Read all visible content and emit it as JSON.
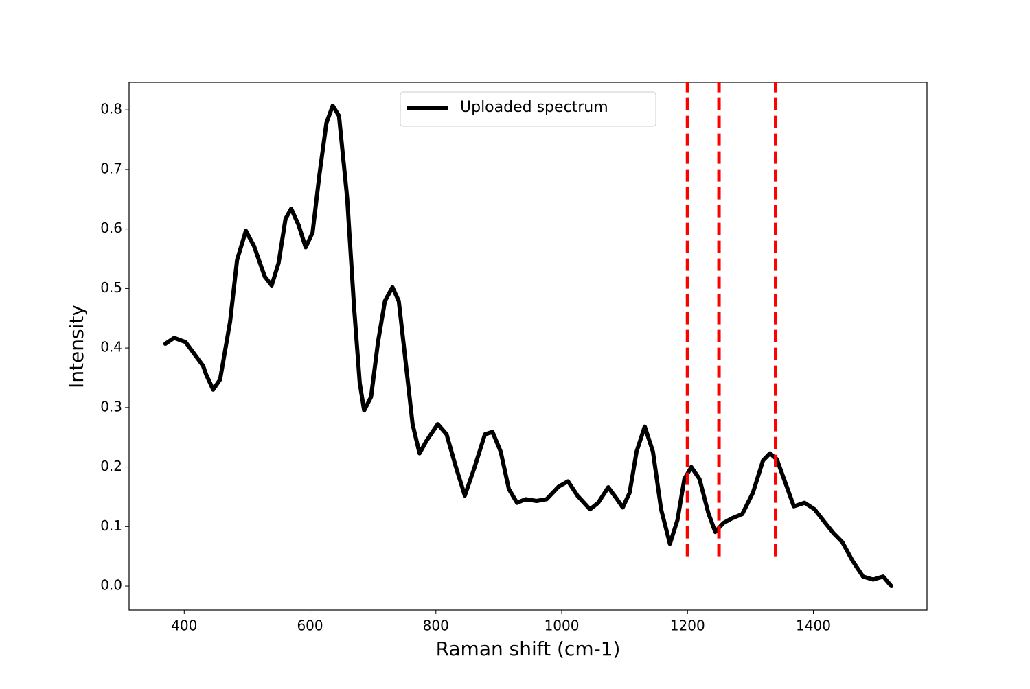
{
  "chart_data": {
    "type": "line",
    "xlabel": "Raman shift (cm-1)",
    "ylabel": "Intensity",
    "xlim": [
      312.35,
      1580.65
    ],
    "ylim": [
      -0.0403,
      0.8463
    ],
    "xticks": [
      400,
      600,
      800,
      1000,
      1200,
      1400
    ],
    "yticks": [
      {
        "value": 0,
        "label": "0.0"
      },
      0.1,
      0.2,
      0.3,
      0.4,
      0.5,
      0.6,
      0.7,
      0.8
    ],
    "grid": false,
    "legend": "upper center",
    "series": [
      {
        "name": "Uploaded spectrum",
        "color": "#000000",
        "x": [
          370,
          384,
          402,
          430,
          435,
          446,
          457,
          473,
          484,
          498,
          511,
          528,
          539,
          550,
          561,
          570,
          582,
          593,
          604,
          615,
          626,
          636,
          646,
          659,
          670,
          679,
          686,
          697,
          708,
          719,
          731,
          741,
          752,
          763,
          774,
          785,
          803,
          817,
          831,
          846,
          861,
          878,
          890,
          903,
          916,
          929,
          943,
          960,
          976,
          995,
          1010,
          1025,
          1045,
          1058,
          1074,
          1088,
          1097,
          1108,
          1119,
          1132,
          1145,
          1158,
          1172,
          1184,
          1195,
          1206,
          1219,
          1233,
          1244,
          1257,
          1271,
          1287,
          1304,
          1320,
          1331,
          1342,
          1355,
          1369,
          1386,
          1402,
          1419,
          1432,
          1446,
          1462,
          1479,
          1495,
          1511,
          1524
        ],
        "values": [
          0.407,
          0.417,
          0.41,
          0.37,
          0.355,
          0.33,
          0.347,
          0.445,
          0.548,
          0.597,
          0.571,
          0.52,
          0.505,
          0.543,
          0.617,
          0.634,
          0.606,
          0.569,
          0.594,
          0.692,
          0.778,
          0.807,
          0.79,
          0.652,
          0.468,
          0.341,
          0.295,
          0.318,
          0.41,
          0.479,
          0.502,
          0.479,
          0.376,
          0.272,
          0.223,
          0.244,
          0.272,
          0.255,
          0.203,
          0.152,
          0.198,
          0.255,
          0.259,
          0.226,
          0.163,
          0.14,
          0.146,
          0.143,
          0.146,
          0.167,
          0.176,
          0.152,
          0.129,
          0.14,
          0.166,
          0.146,
          0.132,
          0.157,
          0.226,
          0.268,
          0.226,
          0.129,
          0.071,
          0.111,
          0.18,
          0.2,
          0.18,
          0.123,
          0.091,
          0.106,
          0.114,
          0.121,
          0.157,
          0.211,
          0.223,
          0.213,
          0.175,
          0.134,
          0.14,
          0.129,
          0.106,
          0.089,
          0.074,
          0.043,
          0.016,
          0.011,
          0.016,
          0.0
        ]
      }
    ],
    "vlines": {
      "x": [
        1200,
        1250,
        1340
      ],
      "ymin": 0.05,
      "ymax": 0.85,
      "color": "#ff0000"
    }
  }
}
